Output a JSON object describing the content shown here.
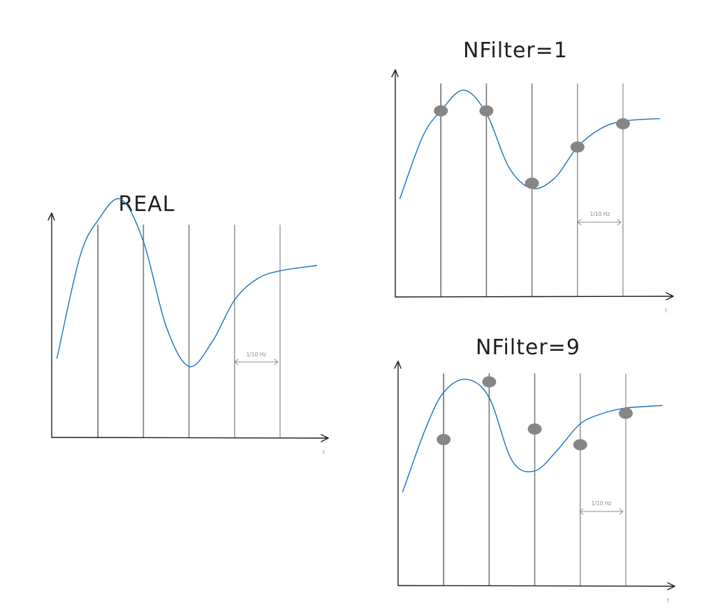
{
  "colors": {
    "ink": "#1e1e1e",
    "curve": "#1971c2",
    "point": "#868686",
    "annotation": "#8a8a8a",
    "sample_lines": [
      "#6e6e6e",
      "#777777",
      "#808080",
      "#999999",
      "#a6a6a6"
    ]
  },
  "panels": [
    {
      "id": "real",
      "title": "REAL",
      "axis_x_label": "t",
      "period_label": "1/10 Hz",
      "sample_times": [
        1,
        2,
        3,
        4,
        5
      ],
      "signal": [
        [
          0.1,
          0.3
        ],
        [
          0.6,
          0.68
        ],
        [
          1.0,
          0.82
        ],
        [
          1.5,
          0.9
        ],
        [
          2.0,
          0.74
        ],
        [
          2.5,
          0.42
        ],
        [
          3.0,
          0.27
        ],
        [
          3.5,
          0.36
        ],
        [
          4.0,
          0.52
        ],
        [
          4.5,
          0.6
        ],
        [
          5.0,
          0.63
        ],
        [
          5.8,
          0.65
        ]
      ],
      "points": []
    },
    {
      "id": "nfilter-1",
      "title": "NFilter=1",
      "axis_x_label": "t",
      "period_label": "1/10 Hz",
      "sample_times": [
        1,
        2,
        3,
        4,
        5
      ],
      "signal": [
        [
          0.1,
          0.38
        ],
        [
          0.6,
          0.62
        ],
        [
          1.0,
          0.72
        ],
        [
          1.5,
          0.8
        ],
        [
          2.0,
          0.71
        ],
        [
          2.5,
          0.5
        ],
        [
          3.0,
          0.42
        ],
        [
          3.5,
          0.46
        ],
        [
          4.0,
          0.58
        ],
        [
          4.5,
          0.65
        ],
        [
          5.0,
          0.68
        ],
        [
          5.8,
          0.69
        ]
      ],
      "points": [
        [
          1.0,
          0.72
        ],
        [
          2.0,
          0.72
        ],
        [
          3.0,
          0.44
        ],
        [
          4.0,
          0.58
        ],
        [
          5.0,
          0.67
        ]
      ]
    },
    {
      "id": "nfilter-9",
      "title": "NFilter=9",
      "axis_x_label": "t",
      "period_label": "1/10 Hz",
      "sample_times": [
        1,
        2,
        3,
        4,
        5
      ],
      "signal": [
        [
          0.1,
          0.36
        ],
        [
          0.6,
          0.6
        ],
        [
          1.0,
          0.74
        ],
        [
          1.5,
          0.79
        ],
        [
          2.0,
          0.72
        ],
        [
          2.5,
          0.48
        ],
        [
          3.0,
          0.44
        ],
        [
          3.5,
          0.52
        ],
        [
          4.0,
          0.62
        ],
        [
          4.5,
          0.66
        ],
        [
          5.0,
          0.68
        ],
        [
          5.8,
          0.69
        ]
      ],
      "points": [
        [
          1.0,
          0.56
        ],
        [
          2.0,
          0.78
        ],
        [
          3.0,
          0.6
        ],
        [
          4.0,
          0.54
        ],
        [
          5.0,
          0.66
        ]
      ]
    }
  ]
}
